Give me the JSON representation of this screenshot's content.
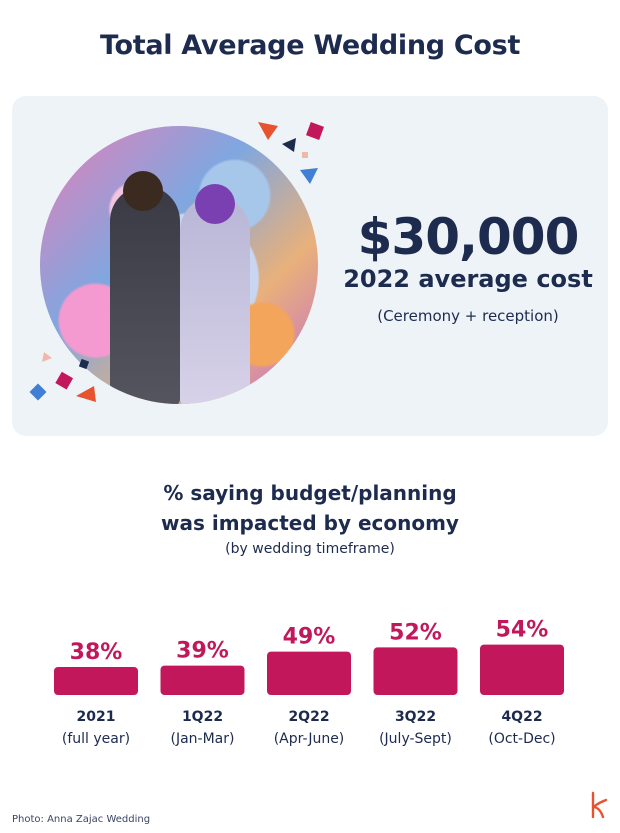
{
  "header": {
    "title": "Total Average Wedding Cost"
  },
  "highlight": {
    "amount": "$30,000",
    "label": "2022 average cost",
    "note": "(Ceremony + reception)"
  },
  "chart_data": {
    "type": "bar",
    "title": "% saying budget/planning was impacted by economy",
    "title_lines": [
      "% saying budget/planning",
      "was impacted by economy"
    ],
    "subtitle": "(by wedding timeframe)",
    "categories": [
      "2021",
      "1Q22",
      "2Q22",
      "3Q22",
      "4Q22"
    ],
    "category_sublabels": [
      "(full year)",
      "(Jan-Mar)",
      "(Apr-June)",
      "(July-Sept)",
      "(Oct-Dec)"
    ],
    "values": [
      38,
      39,
      49,
      52,
      54
    ],
    "value_labels": [
      "38%",
      "39%",
      "49%",
      "52%",
      "54%"
    ],
    "bar_color": "#c2185b",
    "grid": false,
    "legend": "none"
  },
  "footer": {
    "credit": "Photo: Anna Zajac Wedding"
  },
  "colors": {
    "navy": "#1d2b4f",
    "accent": "#c2185b",
    "card": "#eef3f8"
  }
}
